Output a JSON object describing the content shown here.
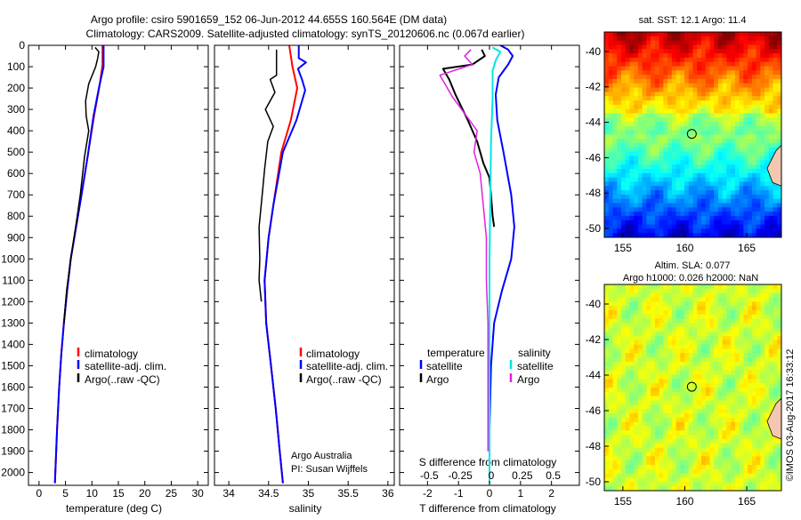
{
  "title_line1": "Argo profile: csiro 5901659_152 06-Jun-2012 44.655S 160.564E (DM data)",
  "title_line2": "Climatology: CARS2009. Satellite-adjusted climatology: synTS_20120606.nc (0.067d earlier)",
  "watermark": "©IMOS 03-Aug-2017 16:33:12",
  "colors": {
    "climatology": "#ff0000",
    "satellite": "#0000ff",
    "argo": "#000000",
    "sal_satellite": "#00e5e5",
    "sal_argo": "#e020e0"
  },
  "chart_data": [
    {
      "type": "line",
      "xlabel": "temperature (deg C)",
      "ylabel": "",
      "xlim": [
        -2,
        32
      ],
      "ylim": [
        2060,
        0
      ],
      "xticks": [
        "0",
        "5",
        "10",
        "15",
        "20",
        "25",
        "30"
      ],
      "yticks": [
        "0",
        "100",
        "200",
        "300",
        "400",
        "500",
        "600",
        "700",
        "800",
        "900",
        "1000",
        "1100",
        "1200",
        "1300",
        "1400",
        "1500",
        "1600",
        "1700",
        "1800",
        "1900",
        "2000"
      ],
      "legend": [
        "climatology",
        "satellite-adj. clim.",
        "Argo(..raw -QC)"
      ],
      "series": [
        {
          "name": "climatology",
          "color": "climatology",
          "width": 2,
          "points": [
            [
              12,
              0
            ],
            [
              12,
              90
            ],
            [
              11.5,
              180
            ],
            [
              10.4,
              330
            ],
            [
              9.2,
              520
            ],
            [
              7.9,
              720
            ],
            [
              7,
              850
            ],
            [
              6,
              1000
            ],
            [
              5.3,
              1150
            ],
            [
              4.7,
              1300
            ],
            [
              4.2,
              1450
            ],
            [
              3.8,
              1600
            ],
            [
              3.4,
              1800
            ],
            [
              3,
              2050
            ]
          ]
        },
        {
          "name": "satellite-adj. clim.",
          "color": "satellite",
          "width": 2,
          "points": [
            [
              12.2,
              0
            ],
            [
              12.2,
              100
            ],
            [
              11.4,
              190
            ],
            [
              10.3,
              330
            ],
            [
              9.2,
              520
            ],
            [
              7.9,
              720
            ],
            [
              7,
              850
            ],
            [
              6,
              1000
            ],
            [
              5.3,
              1150
            ],
            [
              4.7,
              1300
            ],
            [
              4.2,
              1450
            ],
            [
              3.8,
              1600
            ],
            [
              3.4,
              1800
            ],
            [
              3,
              2050
            ]
          ]
        },
        {
          "name": "Argo(..raw -QC)",
          "color": "argo",
          "width": 1.5,
          "points": [
            [
              10.6,
              10
            ],
            [
              11.3,
              30
            ],
            [
              11.1,
              60
            ],
            [
              10.7,
              100
            ],
            [
              9.4,
              180
            ],
            [
              8.8,
              260
            ],
            [
              8.9,
              330
            ],
            [
              9.4,
              400
            ],
            [
              8.6,
              520
            ],
            [
              7.8,
              700
            ],
            [
              7.1,
              820
            ],
            [
              6,
              1000
            ],
            [
              5.2,
              1150
            ],
            [
              4.7,
              1300
            ]
          ]
        }
      ]
    },
    {
      "type": "line",
      "xlabel": "salinity",
      "ylabel": "",
      "xlim": [
        33.82,
        36.08
      ],
      "ylim": [
        2060,
        0
      ],
      "xticks": [
        "34",
        "34.5",
        "35",
        "35.5",
        "36"
      ],
      "legend": [
        "climatology",
        "satellite-adj. clim.",
        "Argo(..raw -QC)"
      ],
      "annotations": [
        "Argo Australia",
        "PI: Susan Wijffels"
      ],
      "series": [
        {
          "name": "climatology",
          "color": "climatology",
          "width": 2,
          "points": [
            [
              34.76,
              0
            ],
            [
              34.8,
              100
            ],
            [
              34.86,
              200
            ],
            [
              34.78,
              350
            ],
            [
              34.66,
              500
            ],
            [
              34.56,
              750
            ],
            [
              34.5,
              900
            ],
            [
              34.45,
              1100
            ],
            [
              34.47,
              1300
            ],
            [
              34.53,
              1500
            ],
            [
              34.59,
              1700
            ],
            [
              34.64,
              1900
            ],
            [
              34.68,
              2050
            ]
          ]
        },
        {
          "name": "satellite-adj. clim.",
          "color": "satellite",
          "width": 2,
          "points": [
            [
              34.88,
              0
            ],
            [
              34.88,
              60
            ],
            [
              34.97,
              80
            ],
            [
              34.87,
              110
            ],
            [
              34.92,
              160
            ],
            [
              34.96,
              210
            ],
            [
              34.85,
              350
            ],
            [
              34.68,
              500
            ],
            [
              34.56,
              750
            ],
            [
              34.5,
              900
            ],
            [
              34.45,
              1100
            ],
            [
              34.47,
              1300
            ],
            [
              34.53,
              1500
            ],
            [
              34.59,
              1700
            ],
            [
              34.64,
              1900
            ],
            [
              34.68,
              2050
            ]
          ]
        },
        {
          "name": "Argo(..raw -QC)",
          "color": "argo",
          "width": 1.5,
          "points": [
            [
              34.6,
              20
            ],
            [
              34.6,
              140
            ],
            [
              34.52,
              160
            ],
            [
              34.58,
              220
            ],
            [
              34.46,
              300
            ],
            [
              34.56,
              380
            ],
            [
              34.49,
              450
            ],
            [
              34.45,
              580
            ],
            [
              34.42,
              700
            ],
            [
              34.38,
              850
            ],
            [
              34.39,
              1000
            ],
            [
              34.38,
              1100
            ],
            [
              34.41,
              1200
            ]
          ]
        }
      ]
    },
    {
      "type": "line",
      "xlabel": "T difference from climatology",
      "x2label": "S difference from climatology",
      "ylabel": "",
      "xlim": [
        -2.9,
        2.9
      ],
      "ylim": [
        2060,
        0
      ],
      "xticks": [
        "-2",
        "-1",
        "0",
        "1",
        "2"
      ],
      "x2ticks": [
        "-0.5",
        "-0.25",
        "0",
        "0.25",
        "0.5"
      ],
      "legend_groups": [
        {
          "title": "temperature",
          "entries": [
            "satellite",
            "Argo"
          ]
        },
        {
          "title": "salinity",
          "entries": [
            "satellite",
            "Argo"
          ]
        }
      ],
      "series": [
        {
          "name": "temperature satellite",
          "color": "satellite",
          "width": 2,
          "points": [
            [
              0.35,
              0
            ],
            [
              0.6,
              20
            ],
            [
              0.75,
              50
            ],
            [
              0.6,
              90
            ],
            [
              0.3,
              150
            ],
            [
              0.2,
              230
            ],
            [
              0.25,
              350
            ],
            [
              0.45,
              500
            ],
            [
              0.7,
              700
            ],
            [
              0.8,
              850
            ],
            [
              0.7,
              1000
            ],
            [
              0.4,
              1150
            ],
            [
              0.15,
              1300
            ],
            [
              0.05,
              1500
            ],
            [
              0,
              1800
            ],
            [
              0,
              2050
            ]
          ]
        },
        {
          "name": "temperature Argo",
          "color": "argo",
          "width": 2,
          "points": [
            [
              -0.25,
              20
            ],
            [
              -0.15,
              50
            ],
            [
              -0.55,
              90
            ],
            [
              -1.5,
              110
            ],
            [
              -1.3,
              160
            ],
            [
              -1.1,
              230
            ],
            [
              -0.7,
              350
            ],
            [
              -0.4,
              450
            ],
            [
              -0.2,
              550
            ],
            [
              0,
              620
            ],
            [
              0.05,
              700
            ],
            [
              0.1,
              800
            ],
            [
              0.15,
              850
            ]
          ]
        },
        {
          "name": "salinity satellite",
          "color": "sal_satellite",
          "width": 2,
          "points": [
            [
              0.1,
              10
            ],
            [
              0.35,
              30
            ],
            [
              0.2,
              70
            ],
            [
              0.1,
              120
            ],
            [
              0.1,
              250
            ],
            [
              0.05,
              450
            ],
            [
              0.03,
              700
            ],
            [
              0,
              1000
            ],
            [
              0,
              1300
            ],
            [
              0,
              1500
            ],
            [
              0,
              2050
            ]
          ]
        },
        {
          "name": "salinity Argo",
          "color": "sal_argo",
          "width": 1.5,
          "points": [
            [
              -0.6,
              20
            ],
            [
              -0.8,
              50
            ],
            [
              -0.55,
              90
            ],
            [
              -1.6,
              140
            ],
            [
              -1.2,
              240
            ],
            [
              -0.4,
              400
            ],
            [
              -0.5,
              500
            ],
            [
              -0.3,
              600
            ],
            [
              -0.2,
              750
            ],
            [
              -0.1,
              900
            ],
            [
              -0.1,
              1100
            ],
            [
              -0.05,
              1300
            ],
            [
              -0.05,
              1600
            ],
            [
              -0.05,
              1900
            ]
          ]
        }
      ]
    },
    {
      "type": "heatmap",
      "title": "sat. SST: 12.1 Argo: 11.4",
      "xlim": [
        153.5,
        167.8
      ],
      "ylim": [
        -50.5,
        -38.9
      ],
      "xticks": [
        "155",
        "160",
        "165"
      ],
      "yticks": [
        "-40",
        "-42",
        "-44",
        "-46",
        "-48",
        "-50"
      ],
      "marker": {
        "lon": 160.564,
        "lat": -44.655
      }
    },
    {
      "type": "heatmap",
      "title": "Altim. SLA: 0.077",
      "subtitle": "Argo h1000: 0.026 h2000: NaN",
      "xlim": [
        153.5,
        167.8
      ],
      "ylim": [
        -50.5,
        -38.9
      ],
      "xticks": [
        "155",
        "160",
        "165"
      ],
      "yticks": [
        "-40",
        "-42",
        "-44",
        "-46",
        "-48",
        "-50"
      ],
      "marker": {
        "lon": 160.564,
        "lat": -44.655
      }
    }
  ]
}
